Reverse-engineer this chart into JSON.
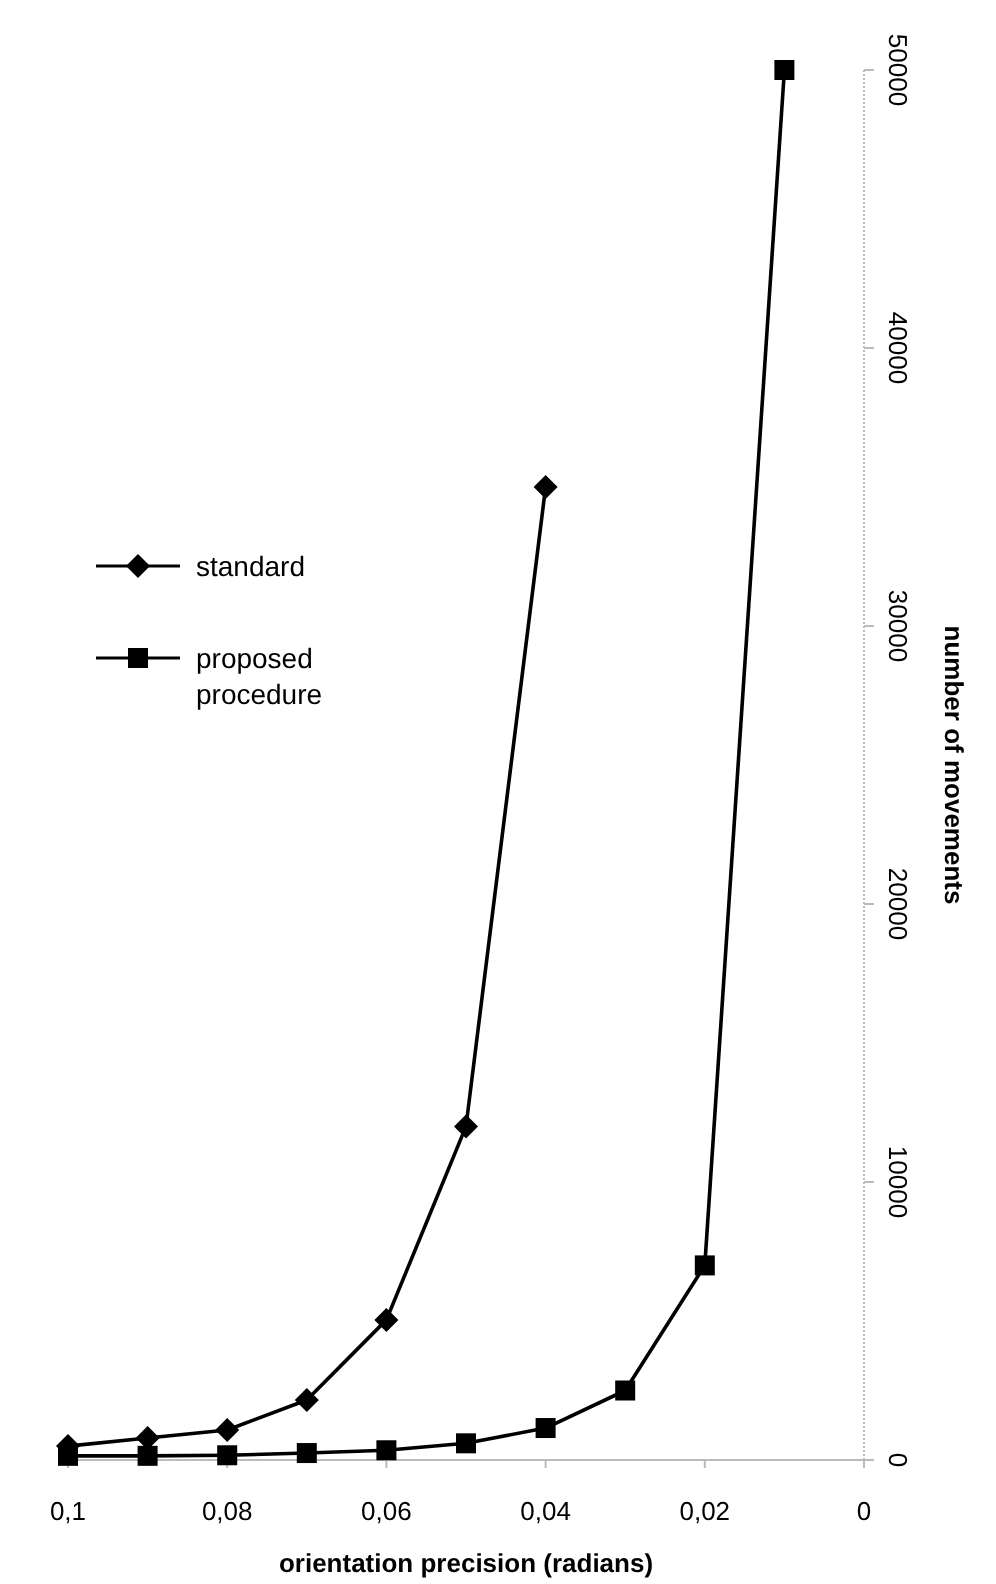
{
  "chart_data": {
    "type": "line",
    "xlabel": "orientation precision (radians)",
    "ylabel": "number of movements",
    "xlim": [
      0.1,
      0
    ],
    "xticks": [
      {
        "value": 0.1,
        "label": "0,1"
      },
      {
        "value": 0.08,
        "label": "0,08"
      },
      {
        "value": 0.06,
        "label": "0,06"
      },
      {
        "value": 0.04,
        "label": "0,04"
      },
      {
        "value": 0.02,
        "label": "0,02"
      },
      0
    ],
    "ylim": [
      0,
      50000
    ],
    "yticks": [
      0,
      10000,
      20000,
      30000,
      40000,
      50000
    ],
    "x": [
      0.1,
      0.09,
      0.08,
      0.07,
      0.06,
      0.05,
      0.04,
      0.03,
      0.02,
      0.01
    ],
    "series": [
      {
        "name": "standard",
        "color": "#000000",
        "marker": "diamond",
        "values": [
          500,
          790,
          1080,
          2160,
          5040,
          12000,
          35000,
          null,
          null,
          null
        ]
      },
      {
        "name": "proposed procedure",
        "color": "#000000",
        "marker": "square",
        "values": [
          150,
          150,
          170,
          250,
          350,
          600,
          1150,
          2500,
          7000,
          50000
        ]
      }
    ],
    "legend": "left",
    "grid": false,
    "line_style": "solid"
  }
}
